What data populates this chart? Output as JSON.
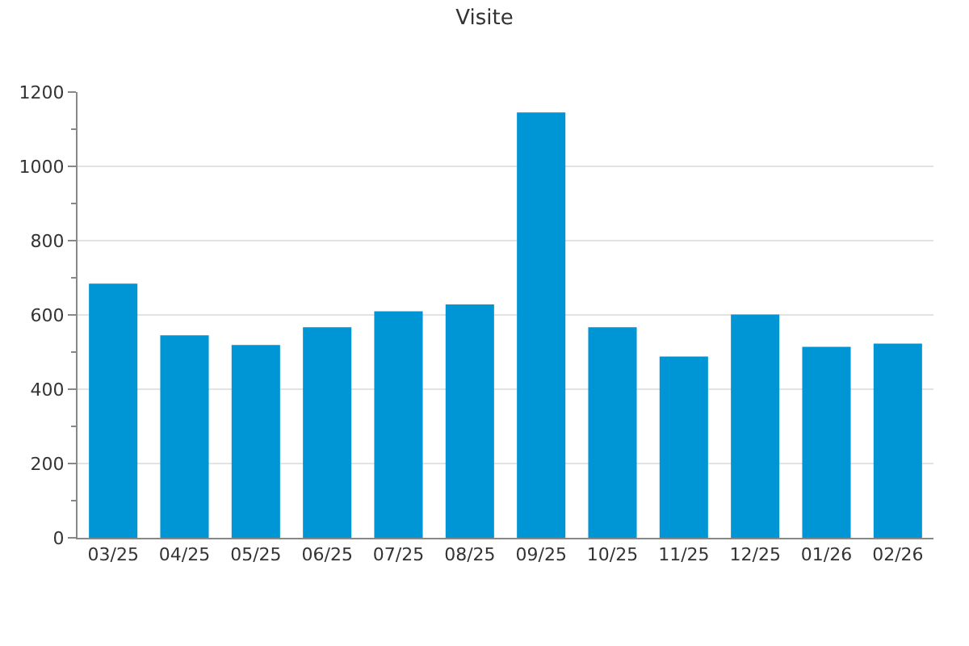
{
  "chart_data": {
    "type": "bar",
    "title": "Visite",
    "categories": [
      "03/25",
      "04/25",
      "05/25",
      "06/25",
      "07/25",
      "08/25",
      "09/25",
      "10/25",
      "11/25",
      "12/25",
      "01/26",
      "02/26"
    ],
    "values": [
      684,
      545,
      519,
      567,
      610,
      628,
      1145,
      567,
      488,
      601,
      514,
      523
    ],
    "color": "#0095d4",
    "ylim": [
      0,
      1200
    ],
    "yticks": [
      0,
      200,
      400,
      600,
      800,
      1000,
      1200
    ],
    "grid": "y"
  }
}
